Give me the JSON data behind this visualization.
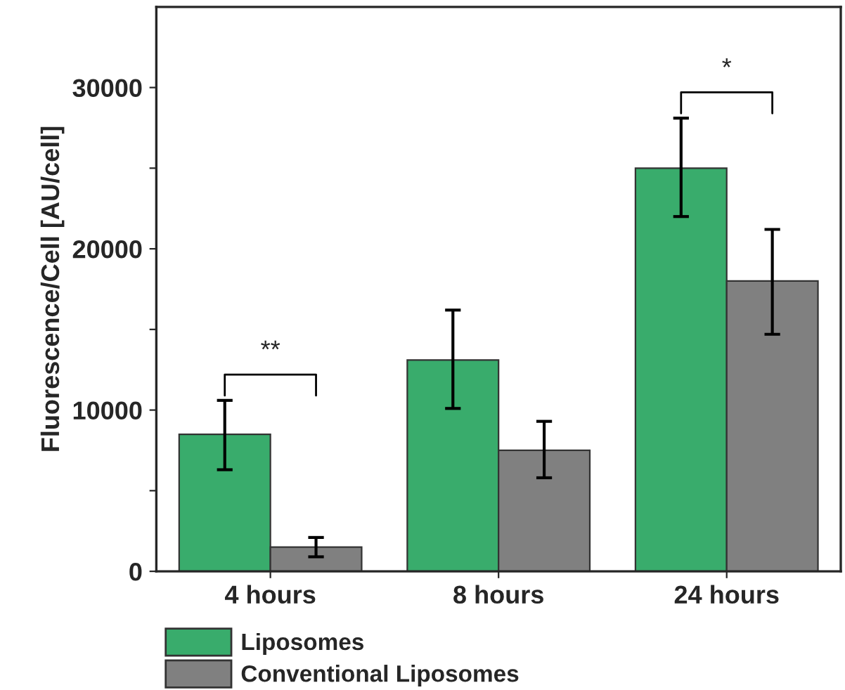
{
  "chart_data": {
    "type": "bar",
    "ylabel": "Fluorescence/Cell [AU/cell]",
    "categories": [
      "4 hours",
      "8 hours",
      "24 hours"
    ],
    "series": [
      {
        "name": "Liposomes",
        "color": "#39ac6c",
        "values": [
          8500,
          13100,
          25000
        ],
        "errors": [
          [
            6300,
            10600
          ],
          [
            10100,
            16200
          ],
          [
            22000,
            28100
          ]
        ]
      },
      {
        "name": "Conventional Liposomes",
        "color": "#808080",
        "values": [
          1500,
          7500,
          18000
        ],
        "errors": [
          [
            900,
            2100
          ],
          [
            5800,
            9300
          ],
          [
            14700,
            21200
          ]
        ]
      }
    ],
    "ylim": [
      0,
      35000
    ],
    "yticks": [
      0,
      {
        "value": 5000,
        "label": null
      },
      10000,
      {
        "value": 15000,
        "label": null
      },
      20000,
      {
        "value": 25000,
        "label": null
      },
      30000
    ],
    "annotations": [
      "**",
      "*"
    ],
    "legend": "bottom left",
    "grid": false
  }
}
